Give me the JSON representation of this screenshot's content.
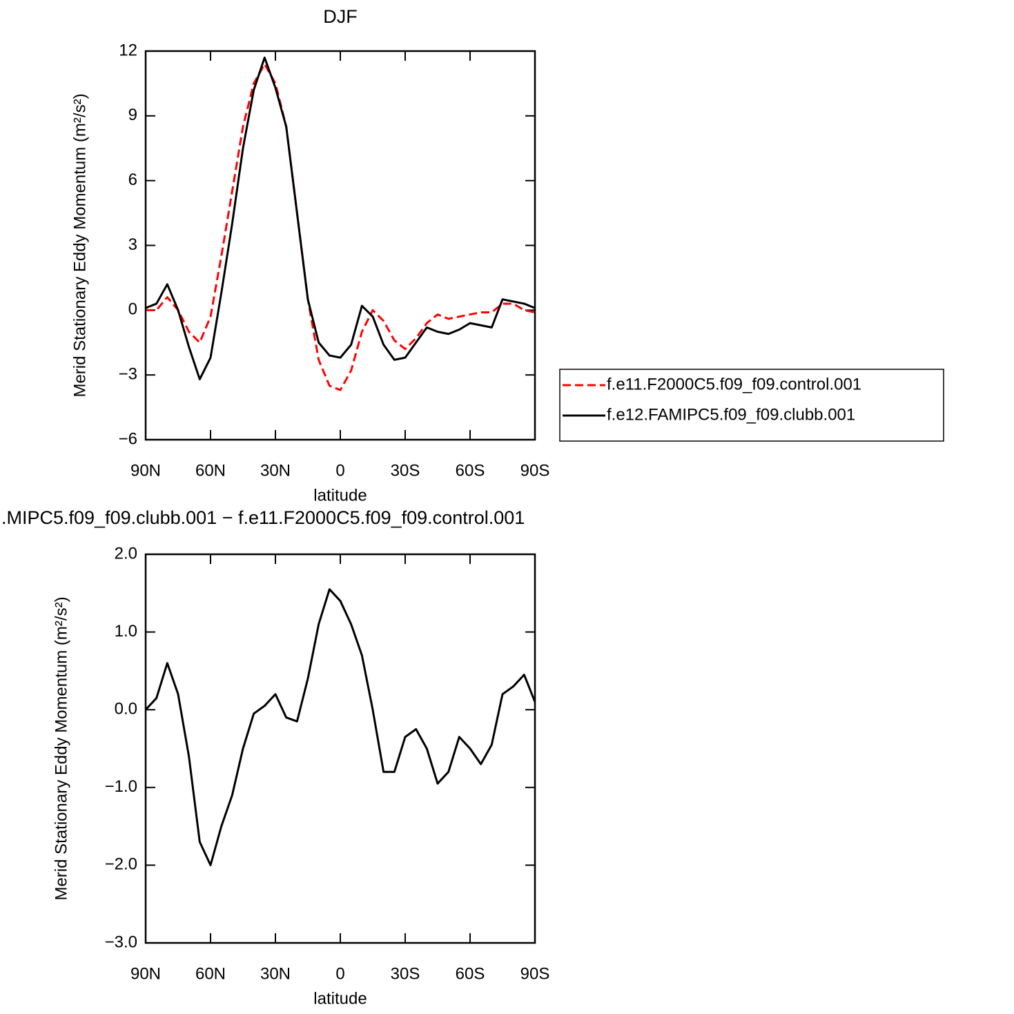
{
  "chart_data": [
    {
      "type": "line",
      "title": "DJF",
      "xlabel": "latitude",
      "ylabel": "Merid Stationary Eddy Momentum (m²/s²)",
      "x": [
        90,
        85,
        80,
        75,
        70,
        65,
        60,
        55,
        50,
        45,
        40,
        35,
        30,
        25,
        20,
        15,
        10,
        5,
        0,
        -5,
        -10,
        -15,
        -20,
        -25,
        -30,
        -35,
        -40,
        -45,
        -50,
        -55,
        -60,
        -65,
        -70,
        -75,
        -80,
        -85,
        -90
      ],
      "series": [
        {
          "name": "f.e11.F2000C5.f09_f09.control.001",
          "color": "#ff0000",
          "style": "dashed",
          "values": [
            0.0,
            0.0,
            0.6,
            0.0,
            -1.0,
            -1.5,
            -0.3,
            2.5,
            5.5,
            8.5,
            10.5,
            11.4,
            10.5,
            8.5,
            4.5,
            0.5,
            -2.3,
            -3.5,
            -3.7,
            -2.8,
            -1.0,
            0.0,
            -0.5,
            -1.4,
            -1.8,
            -1.3,
            -0.6,
            -0.2,
            -0.4,
            -0.3,
            -0.2,
            -0.1,
            -0.1,
            0.3,
            0.3,
            0.0,
            -0.1
          ]
        },
        {
          "name": "f.e12.FAMIPC5.f09_f09.clubb.001",
          "color": "#000000",
          "style": "solid",
          "values": [
            0.1,
            0.3,
            1.2,
            0.0,
            -1.7,
            -3.2,
            -2.2,
            0.8,
            4.0,
            7.5,
            10.2,
            11.7,
            10.3,
            8.5,
            4.5,
            0.5,
            -1.5,
            -2.1,
            -2.2,
            -1.6,
            0.2,
            -0.3,
            -1.6,
            -2.3,
            -2.2,
            -1.5,
            -0.8,
            -1.0,
            -1.1,
            -0.9,
            -0.6,
            -0.7,
            -0.8,
            0.5,
            0.4,
            0.3,
            0.1
          ]
        }
      ],
      "xlim": [
        90,
        -90
      ],
      "xticks": [
        {
          "value": 90,
          "label": "90N"
        },
        {
          "value": 60,
          "label": "60N"
        },
        {
          "value": 30,
          "label": "30N"
        },
        0,
        {
          "value": -30,
          "label": "30S"
        },
        {
          "value": -60,
          "label": "60S"
        },
        {
          "value": -90,
          "label": "90S"
        }
      ],
      "ylim": [
        -6,
        12
      ],
      "yticks": [
        {
          "value": -6,
          "label": "−6"
        },
        {
          "value": -3,
          "label": "−3"
        },
        0,
        3,
        6,
        9,
        12
      ],
      "legend_position": "right"
    },
    {
      "type": "line",
      "title": ".MIPC5.f09_f09.clubb.001 − f.e11.F2000C5.f09_f09.control.001",
      "xlabel": "latitude",
      "ylabel": "Merid Stationary Eddy Momentum (m²/s²)",
      "x": [
        90,
        85,
        80,
        75,
        70,
        65,
        60,
        55,
        50,
        45,
        40,
        35,
        30,
        25,
        20,
        15,
        10,
        5,
        0,
        -5,
        -10,
        -15,
        -20,
        -25,
        -30,
        -35,
        -40,
        -45,
        -50,
        -55,
        -60,
        -65,
        -70,
        -75,
        -80,
        -85,
        -90
      ],
      "color": "#000000",
      "values": [
        0.0,
        0.15,
        0.6,
        0.2,
        -0.6,
        -1.7,
        -2.0,
        -1.5,
        -1.1,
        -0.5,
        -0.05,
        0.05,
        0.2,
        -0.1,
        -0.15,
        0.4,
        1.1,
        1.55,
        1.4,
        1.1,
        0.7,
        0.0,
        -0.8,
        -0.8,
        -0.35,
        -0.25,
        -0.5,
        -0.95,
        -0.8,
        -0.35,
        -0.5,
        -0.7,
        -0.45,
        0.2,
        0.3,
        0.45,
        0.1
      ],
      "xlim": [
        90,
        -90
      ],
      "xticks": [
        {
          "value": 90,
          "label": "90N"
        },
        {
          "value": 60,
          "label": "60N"
        },
        {
          "value": 30,
          "label": "30N"
        },
        0,
        {
          "value": -30,
          "label": "30S"
        },
        {
          "value": -60,
          "label": "60S"
        },
        {
          "value": -90,
          "label": "90S"
        }
      ],
      "ylim": [
        -3,
        2
      ],
      "yticks": [
        {
          "value": -3,
          "label": "−3.0"
        },
        {
          "value": -2,
          "label": "−2.0"
        },
        {
          "value": -1,
          "label": "−1.0"
        },
        {
          "value": 0,
          "label": "0.0"
        },
        {
          "value": 1,
          "label": "1.0"
        },
        {
          "value": 2,
          "label": "2.0"
        }
      ]
    }
  ]
}
